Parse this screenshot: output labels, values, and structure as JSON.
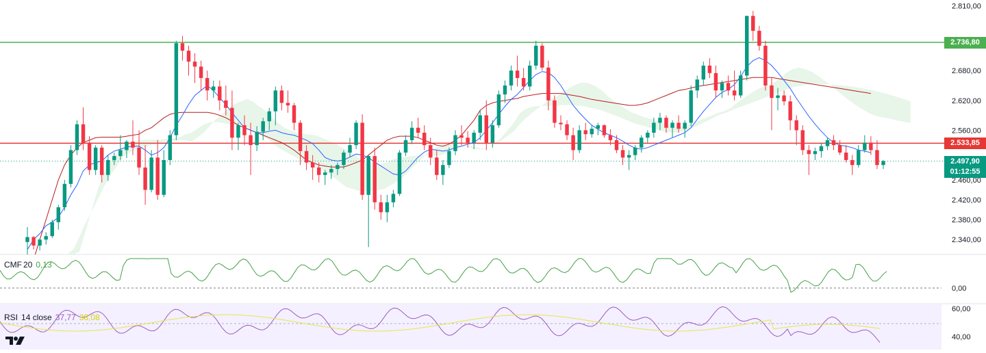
{
  "price_axis": {
    "ticks": [
      "2.810,00",
      "2.680,00",
      "2.620,00",
      "2.560,00",
      "2.460,00",
      "2.420,00",
      "2.380,00",
      "2.340,00"
    ]
  },
  "levels": {
    "resistance": {
      "label": "2.736,80",
      "value": 2736.8,
      "color": "#4caf50"
    },
    "pivot": {
      "label": "2.533,85",
      "value": 2533.85,
      "color": "#e53935"
    }
  },
  "last_price": {
    "label": "2.497,90",
    "countdown": "01:12:55",
    "value": 2497.9,
    "color": "#089981"
  },
  "cmf": {
    "name": "CMF",
    "period": "20",
    "value": "0,13",
    "axis_tick": "0,00",
    "color": "#43a047"
  },
  "rsi": {
    "name": "RSI",
    "params": "14 close",
    "value": "37,77",
    "ma_value": "38,08",
    "axis_ticks": [
      "60,00",
      "40,00"
    ],
    "color": "#9c5cbf",
    "ma_color": "#e6e64a"
  },
  "colors": {
    "up": "#089981",
    "down": "#f23645",
    "tenkan": "#2962ff",
    "kijun": "#b71c1c",
    "cloud_up": "#e8f5e9",
    "cloud_down": "#fdecec"
  },
  "chart_data": {
    "type": "candlestick",
    "ylim": [
      2310,
      2822
    ],
    "candles": [
      [
        2335,
        2365,
        2305,
        2345
      ],
      [
        2345,
        2347,
        2320,
        2328
      ],
      [
        2328,
        2342,
        2318,
        2340
      ],
      [
        2340,
        2355,
        2330,
        2347
      ],
      [
        2347,
        2380,
        2343,
        2375
      ],
      [
        2375,
        2410,
        2360,
        2405
      ],
      [
        2405,
        2460,
        2398,
        2452
      ],
      [
        2452,
        2530,
        2445,
        2520
      ],
      [
        2520,
        2580,
        2510,
        2572
      ],
      [
        2572,
        2606,
        2520,
        2535
      ],
      [
        2535,
        2548,
        2470,
        2480
      ],
      [
        2480,
        2530,
        2470,
        2525
      ],
      [
        2525,
        2530,
        2455,
        2470
      ],
      [
        2470,
        2510,
        2458,
        2500
      ],
      [
        2500,
        2515,
        2490,
        2508
      ],
      [
        2508,
        2550,
        2500,
        2520
      ],
      [
        2520,
        2540,
        2504,
        2537
      ],
      [
        2537,
        2580,
        2510,
        2525
      ],
      [
        2525,
        2560,
        2470,
        2485
      ],
      [
        2485,
        2530,
        2410,
        2440
      ],
      [
        2440,
        2520,
        2435,
        2505
      ],
      [
        2505,
        2540,
        2420,
        2430
      ],
      [
        2430,
        2520,
        2425,
        2500
      ],
      [
        2500,
        2560,
        2490,
        2550
      ],
      [
        2550,
        2740,
        2540,
        2735
      ],
      [
        2735,
        2750,
        2700,
        2720
      ],
      [
        2720,
        2730,
        2670,
        2698
      ],
      [
        2698,
        2715,
        2655,
        2688
      ],
      [
        2688,
        2700,
        2640,
        2665
      ],
      [
        2665,
        2680,
        2620,
        2640
      ],
      [
        2640,
        2660,
        2625,
        2648
      ],
      [
        2648,
        2660,
        2600,
        2620
      ],
      [
        2620,
        2650,
        2590,
        2605
      ],
      [
        2605,
        2640,
        2520,
        2545
      ],
      [
        2545,
        2575,
        2520,
        2570
      ],
      [
        2570,
        2590,
        2530,
        2550
      ],
      [
        2550,
        2575,
        2470,
        2530
      ],
      [
        2530,
        2568,
        2518,
        2557
      ],
      [
        2557,
        2585,
        2540,
        2578
      ],
      [
        2578,
        2605,
        2560,
        2598
      ],
      [
        2598,
        2648,
        2570,
        2640
      ],
      [
        2640,
        2650,
        2600,
        2615
      ],
      [
        2615,
        2640,
        2595,
        2610
      ],
      [
        2610,
        2615,
        2560,
        2575
      ],
      [
        2575,
        2580,
        2490,
        2518
      ],
      [
        2518,
        2530,
        2480,
        2495
      ],
      [
        2495,
        2510,
        2460,
        2485
      ],
      [
        2485,
        2495,
        2455,
        2470
      ],
      [
        2470,
        2480,
        2450,
        2475
      ],
      [
        2475,
        2490,
        2462,
        2482
      ],
      [
        2482,
        2495,
        2470,
        2490
      ],
      [
        2490,
        2520,
        2482,
        2515
      ],
      [
        2515,
        2545,
        2505,
        2530
      ],
      [
        2530,
        2580,
        2522,
        2575
      ],
      [
        2575,
        2592,
        2420,
        2430
      ],
      [
        2430,
        2510,
        2325,
        2508
      ],
      [
        2508,
        2525,
        2400,
        2415
      ],
      [
        2415,
        2430,
        2380,
        2395
      ],
      [
        2395,
        2430,
        2375,
        2415
      ],
      [
        2415,
        2440,
        2405,
        2432
      ],
      [
        2432,
        2520,
        2428,
        2515
      ],
      [
        2515,
        2550,
        2508,
        2540
      ],
      [
        2540,
        2578,
        2532,
        2565
      ],
      [
        2565,
        2585,
        2545,
        2555
      ],
      [
        2555,
        2570,
        2520,
        2530
      ],
      [
        2530,
        2545,
        2490,
        2505
      ],
      [
        2505,
        2520,
        2460,
        2470
      ],
      [
        2470,
        2500,
        2450,
        2490
      ],
      [
        2490,
        2525,
        2484,
        2518
      ],
      [
        2518,
        2560,
        2510,
        2550
      ],
      [
        2550,
        2570,
        2530,
        2545
      ],
      [
        2545,
        2558,
        2525,
        2535
      ],
      [
        2535,
        2560,
        2522,
        2555
      ],
      [
        2555,
        2600,
        2540,
        2590
      ],
      [
        2590,
        2620,
        2520,
        2535
      ],
      [
        2535,
        2580,
        2525,
        2570
      ],
      [
        2570,
        2640,
        2565,
        2632
      ],
      [
        2632,
        2660,
        2615,
        2650
      ],
      [
        2650,
        2690,
        2640,
        2680
      ],
      [
        2680,
        2710,
        2648,
        2665
      ],
      [
        2665,
        2685,
        2640,
        2648
      ],
      [
        2648,
        2700,
        2640,
        2690
      ],
      [
        2690,
        2740,
        2682,
        2730
      ],
      [
        2730,
        2735,
        2680,
        2686
      ],
      [
        2686,
        2700,
        2600,
        2620
      ],
      [
        2620,
        2630,
        2565,
        2575
      ],
      [
        2575,
        2590,
        2560,
        2572
      ],
      [
        2572,
        2580,
        2540,
        2550
      ],
      [
        2550,
        2565,
        2500,
        2520
      ],
      [
        2520,
        2570,
        2514,
        2560
      ],
      [
        2560,
        2575,
        2540,
        2552
      ],
      [
        2552,
        2570,
        2545,
        2563
      ],
      [
        2563,
        2575,
        2550,
        2570
      ],
      [
        2570,
        2572,
        2545,
        2550
      ],
      [
        2550,
        2562,
        2530,
        2540
      ],
      [
        2540,
        2550,
        2514,
        2520
      ],
      [
        2520,
        2530,
        2490,
        2505
      ],
      [
        2505,
        2520,
        2480,
        2510
      ],
      [
        2510,
        2530,
        2500,
        2525
      ],
      [
        2525,
        2550,
        2515,
        2545
      ],
      [
        2545,
        2560,
        2535,
        2555
      ],
      [
        2555,
        2585,
        2545,
        2575
      ],
      [
        2575,
        2595,
        2560,
        2585
      ],
      [
        2585,
        2590,
        2555,
        2565
      ],
      [
        2565,
        2580,
        2545,
        2575
      ],
      [
        2575,
        2590,
        2555,
        2563
      ],
      [
        2563,
        2580,
        2545,
        2575
      ],
      [
        2575,
        2650,
        2568,
        2640
      ],
      [
        2640,
        2670,
        2625,
        2662
      ],
      [
        2662,
        2698,
        2650,
        2690
      ],
      [
        2690,
        2705,
        2665,
        2675
      ],
      [
        2675,
        2690,
        2625,
        2640
      ],
      [
        2640,
        2660,
        2625,
        2655
      ],
      [
        2655,
        2670,
        2630,
        2640
      ],
      [
        2640,
        2680,
        2620,
        2630
      ],
      [
        2630,
        2680,
        2625,
        2670
      ],
      [
        2670,
        2790,
        2660,
        2790
      ],
      [
        2790,
        2800,
        2740,
        2760
      ],
      [
        2760,
        2770,
        2720,
        2730
      ],
      [
        2730,
        2740,
        2640,
        2650
      ],
      [
        2650,
        2665,
        2560,
        2625
      ],
      [
        2625,
        2645,
        2600,
        2630
      ],
      [
        2630,
        2640,
        2610,
        2618
      ],
      [
        2618,
        2630,
        2560,
        2580
      ],
      [
        2580,
        2590,
        2530,
        2560
      ],
      [
        2560,
        2570,
        2510,
        2520
      ],
      [
        2520,
        2530,
        2470,
        2512
      ],
      [
        2512,
        2525,
        2500,
        2518
      ],
      [
        2518,
        2535,
        2505,
        2528
      ],
      [
        2528,
        2545,
        2520,
        2540
      ],
      [
        2540,
        2550,
        2520,
        2530
      ],
      [
        2530,
        2540,
        2510,
        2515
      ],
      [
        2515,
        2530,
        2495,
        2500
      ],
      [
        2500,
        2510,
        2470,
        2490
      ],
      [
        2490,
        2530,
        2485,
        2520
      ],
      [
        2520,
        2550,
        2515,
        2535
      ],
      [
        2535,
        2548,
        2510,
        2520
      ],
      [
        2520,
        2540,
        2482,
        2490
      ],
      [
        2490,
        2500,
        2482,
        2497.9
      ]
    ],
    "tenkan": [
      2320,
      2340,
      2352,
      2368,
      2375,
      2385,
      2405,
      2430,
      2450,
      2478,
      2490,
      2495,
      2498,
      2510,
      2518,
      2522,
      2526,
      2528,
      2528,
      2520,
      2510,
      2515,
      2525,
      2545,
      2570,
      2590,
      2612,
      2630,
      2640,
      2650,
      2640,
      2625,
      2612,
      2595,
      2580,
      2565,
      2560,
      2555,
      2555,
      2558,
      2560,
      2555,
      2552,
      2550,
      2545,
      2540,
      2533,
      2520,
      2505,
      2500,
      2498,
      2500,
      2506,
      2512,
      2510,
      2505,
      2496,
      2488,
      2480,
      2472,
      2470,
      2478,
      2492,
      2506,
      2516,
      2522,
      2520,
      2518,
      2520,
      2525,
      2528,
      2532,
      2535,
      2545,
      2560,
      2575,
      2592,
      2608,
      2622,
      2632,
      2646,
      2660,
      2672,
      2678,
      2676,
      2666,
      2650,
      2630,
      2610,
      2595,
      2582,
      2570,
      2562,
      2555,
      2550,
      2545,
      2538,
      2530,
      2524,
      2522,
      2525,
      2530,
      2535,
      2540,
      2545,
      2550,
      2555,
      2565,
      2582,
      2598,
      2612,
      2626,
      2636,
      2642,
      2652,
      2668,
      2688,
      2700,
      2706,
      2700,
      2690,
      2676,
      2660,
      2644,
      2624,
      2606,
      2588,
      2572,
      2558,
      2545,
      2535,
      2530,
      2528,
      2525,
      2520,
      2518,
      2515
    ],
    "kijun": [
      2250,
      2300,
      2340,
      2380,
      2420,
      2460,
      2490,
      2510,
      2525,
      2535,
      2540,
      2545,
      2546,
      2546,
      2546,
      2546,
      2548,
      2550,
      2552,
      2560,
      2565,
      2575,
      2585,
      2592,
      2595,
      2596,
      2596,
      2596,
      2596,
      2596,
      2594,
      2590,
      2585,
      2578,
      2570,
      2565,
      2560,
      2555,
      2550,
      2545,
      2540,
      2535,
      2528,
      2520,
      2510,
      2500,
      2495,
      2490,
      2488,
      2486,
      2486,
      2486,
      2490,
      2495,
      2500,
      2510,
      2520,
      2530,
      2540,
      2545,
      2548,
      2548,
      2548,
      2545,
      2540,
      2535,
      2530,
      2528,
      2532,
      2540,
      2550,
      2565,
      2580,
      2600,
      2610,
      2615,
      2618,
      2620,
      2622,
      2624,
      2628,
      2630,
      2632,
      2634,
      2634,
      2634,
      2634,
      2632,
      2630,
      2628,
      2625,
      2622,
      2620,
      2618,
      2616,
      2614,
      2612,
      2610,
      2610,
      2612,
      2615,
      2620,
      2625,
      2630,
      2635,
      2640,
      2642,
      2645,
      2648,
      2650,
      2652,
      2654,
      2656,
      2658,
      2660,
      2662,
      2664,
      2666,
      2666,
      2666,
      2666,
      2664,
      2662,
      2660,
      2658,
      2656,
      2654,
      2652,
      2650,
      2648,
      2646,
      2644,
      2642,
      2640,
      2638,
      2636,
      2634
    ]
  }
}
